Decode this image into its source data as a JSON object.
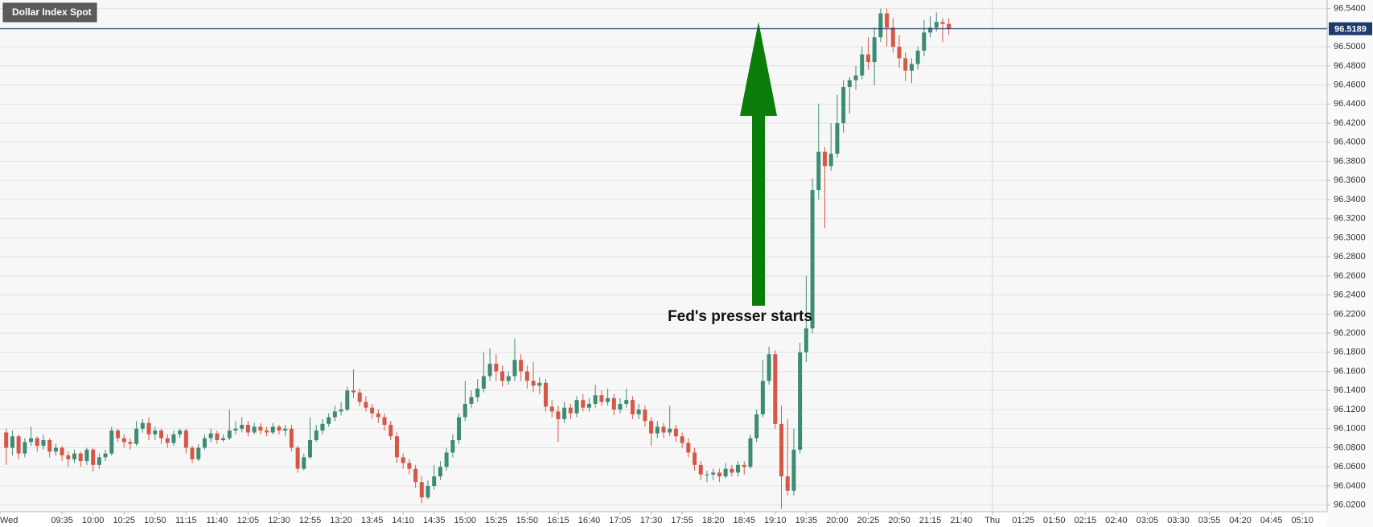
{
  "chart_data": {
    "type": "candlestick",
    "title": "Dollar Index Spot",
    "annotation": "Fed's presser starts",
    "up_color": "#3d8b74",
    "down_color": "#d65745",
    "price_line_color": "#1f3a6e",
    "grid": true,
    "x": [
      1,
      2,
      3,
      4,
      5,
      6,
      7,
      8,
      9,
      10,
      11,
      12,
      13,
      14,
      15,
      16,
      17,
      18,
      19,
      20,
      21,
      22,
      23,
      24,
      25,
      26,
      27,
      28,
      29,
      30,
      31,
      32,
      33,
      34,
      35,
      36,
      37,
      38,
      39,
      40,
      41,
      42,
      43,
      44,
      45,
      46,
      47,
      48,
      49,
      50,
      51,
      52,
      53,
      54,
      55,
      56,
      57,
      58,
      59,
      60,
      61,
      62,
      63,
      64,
      65,
      66,
      67,
      68,
      69,
      70,
      71,
      72,
      73,
      74,
      75,
      76,
      77,
      78,
      79,
      80,
      81,
      82,
      83,
      84,
      85,
      86,
      87,
      88,
      89,
      90,
      91,
      92,
      93,
      94,
      95,
      96,
      97,
      98,
      99,
      100,
      101,
      102,
      103,
      104,
      105,
      106,
      107,
      108,
      109,
      110,
      111,
      112,
      113,
      114,
      115,
      116,
      117,
      118,
      119,
      120,
      121,
      122,
      123,
      124,
      125,
      126,
      127,
      128,
      129,
      130,
      131,
      132,
      133,
      134,
      135,
      136,
      137,
      138,
      139,
      140,
      141,
      142,
      143,
      144,
      145,
      146,
      147,
      148,
      149,
      150,
      151,
      152,
      153
    ],
    "open": [
      96.096,
      96.08,
      96.092,
      96.074,
      96.086,
      96.09,
      96.082,
      96.088,
      96.076,
      96.08,
      96.072,
      96.068,
      96.074,
      96.066,
      96.078,
      96.062,
      96.07,
      96.074,
      96.098,
      96.09,
      96.086,
      96.084,
      96.1,
      96.106,
      96.094,
      96.098,
      96.09,
      96.085,
      96.094,
      96.098,
      96.08,
      96.068,
      96.08,
      96.09,
      96.095,
      96.088,
      96.09,
      96.098,
      96.1,
      96.104,
      96.096,
      96.102,
      96.098,
      96.096,
      96.102,
      96.098,
      96.1,
      96.08,
      96.058,
      96.07,
      96.088,
      96.098,
      96.105,
      96.112,
      96.118,
      96.12,
      96.14,
      96.138,
      96.128,
      96.122,
      96.116,
      96.112,
      96.104,
      96.092,
      96.07,
      96.064,
      96.058,
      96.044,
      96.028,
      96.04,
      96.05,
      96.06,
      96.075,
      96.088,
      96.112,
      96.126,
      96.133,
      96.142,
      96.155,
      96.168,
      96.16,
      96.15,
      96.155,
      96.172,
      96.16,
      96.15,
      96.145,
      96.148,
      96.123,
      96.118,
      96.11,
      96.122,
      96.116,
      96.13,
      96.122,
      96.126,
      96.135,
      96.128,
      96.132,
      96.12,
      96.126,
      96.13,
      96.115,
      96.12,
      96.108,
      96.095,
      96.102,
      96.096,
      96.1,
      96.092,
      96.085,
      96.075,
      96.062,
      96.052,
      96.052,
      96.054,
      96.05,
      96.058,
      96.054,
      96.062,
      96.06,
      96.09,
      96.115,
      96.15,
      96.178,
      96.105,
      96.05,
      96.035,
      96.078,
      96.18,
      96.205,
      96.35,
      96.39,
      96.375,
      96.388,
      96.42,
      96.458,
      96.465,
      96.47,
      96.492,
      96.484,
      96.51,
      96.535,
      96.52,
      96.5,
      96.488,
      96.475,
      96.482,
      96.496,
      96.515,
      96.52,
      96.526,
      96.524
    ],
    "high": [
      96.1,
      96.098,
      96.094,
      96.09,
      96.102,
      96.092,
      96.094,
      96.09,
      96.084,
      96.082,
      96.076,
      96.078,
      96.076,
      96.08,
      96.08,
      96.074,
      96.078,
      96.102,
      96.1,
      96.094,
      96.09,
      96.108,
      96.11,
      96.112,
      96.102,
      96.1,
      96.094,
      96.098,
      96.1,
      96.1,
      96.082,
      96.084,
      96.094,
      96.1,
      96.098,
      96.094,
      96.12,
      96.108,
      96.112,
      96.108,
      96.106,
      96.106,
      96.102,
      96.106,
      96.104,
      96.104,
      96.104,
      96.082,
      96.074,
      96.112,
      96.104,
      96.11,
      96.116,
      96.124,
      96.128,
      96.144,
      96.162,
      96.142,
      96.134,
      96.126,
      96.12,
      96.116,
      96.108,
      96.096,
      96.074,
      96.068,
      96.062,
      96.05,
      96.046,
      96.062,
      96.066,
      96.08,
      96.094,
      96.116,
      96.15,
      96.14,
      96.152,
      96.18,
      96.184,
      96.178,
      96.166,
      96.16,
      96.194,
      96.178,
      96.166,
      96.17,
      96.154,
      96.152,
      96.13,
      96.124,
      96.128,
      96.126,
      96.134,
      96.136,
      96.132,
      96.146,
      96.14,
      96.142,
      96.136,
      96.132,
      96.142,
      96.134,
      96.126,
      96.124,
      96.112,
      96.108,
      96.106,
      96.124,
      96.104,
      96.096,
      96.09,
      96.08,
      96.066,
      96.056,
      96.058,
      96.058,
      96.064,
      96.062,
      96.066,
      96.066,
      96.094,
      96.12,
      96.172,
      96.186,
      96.182,
      96.124,
      96.11,
      96.1,
      96.19,
      96.26,
      96.362,
      96.44,
      96.395,
      96.42,
      96.45,
      96.465,
      96.468,
      96.48,
      96.5,
      96.51,
      96.52,
      96.54,
      96.54,
      96.53,
      96.512,
      96.494,
      96.488,
      96.5,
      96.528,
      96.532,
      96.536,
      96.53,
      96.53
    ],
    "low": [
      96.062,
      96.072,
      96.068,
      96.07,
      96.082,
      96.076,
      96.078,
      96.07,
      96.072,
      96.066,
      96.06,
      96.064,
      96.06,
      96.062,
      96.055,
      96.058,
      96.066,
      96.072,
      96.086,
      96.08,
      96.078,
      96.082,
      96.096,
      96.088,
      96.088,
      96.084,
      96.08,
      96.082,
      96.09,
      96.074,
      96.064,
      96.066,
      96.078,
      96.086,
      96.084,
      96.086,
      96.088,
      96.094,
      96.096,
      96.092,
      96.094,
      96.094,
      96.092,
      96.094,
      96.094,
      96.092,
      96.076,
      96.054,
      96.056,
      96.068,
      96.086,
      96.094,
      96.102,
      96.108,
      96.114,
      96.118,
      96.132,
      96.124,
      96.118,
      96.11,
      96.106,
      96.098,
      96.088,
      96.064,
      96.058,
      96.052,
      96.038,
      96.022,
      96.026,
      96.036,
      96.046,
      96.056,
      96.07,
      96.084,
      96.108,
      96.122,
      96.128,
      96.138,
      96.15,
      96.15,
      96.144,
      96.146,
      96.15,
      96.15,
      96.142,
      96.138,
      96.136,
      96.118,
      96.112,
      96.086,
      96.106,
      96.11,
      96.112,
      96.118,
      96.118,
      96.122,
      96.124,
      96.124,
      96.114,
      96.116,
      96.122,
      96.11,
      96.11,
      96.102,
      96.082,
      96.09,
      96.09,
      96.092,
      96.086,
      96.08,
      96.07,
      96.056,
      96.046,
      96.044,
      96.046,
      96.044,
      96.048,
      96.05,
      96.05,
      96.052,
      96.058,
      96.086,
      96.112,
      96.146,
      96.1,
      96.016,
      96.03,
      96.03,
      96.074,
      96.17,
      96.2,
      96.34,
      96.31,
      96.37,
      96.384,
      96.41,
      96.43,
      96.455,
      96.466,
      96.476,
      96.46,
      96.505,
      96.5,
      96.494,
      96.478,
      96.464,
      96.462,
      96.476,
      96.49,
      96.51,
      96.516,
      96.505,
      96.512
    ],
    "close": [
      96.08,
      96.092,
      96.074,
      96.086,
      96.09,
      96.082,
      96.088,
      96.076,
      96.08,
      96.072,
      96.068,
      96.074,
      96.066,
      96.078,
      96.062,
      96.07,
      96.074,
      96.098,
      96.09,
      96.086,
      96.084,
      96.1,
      96.106,
      96.094,
      96.098,
      96.09,
      96.085,
      96.094,
      96.098,
      96.08,
      96.068,
      96.08,
      96.09,
      96.095,
      96.088,
      96.09,
      96.098,
      96.1,
      96.104,
      96.096,
      96.102,
      96.098,
      96.096,
      96.102,
      96.098,
      96.1,
      96.08,
      96.058,
      96.07,
      96.088,
      96.098,
      96.105,
      96.112,
      96.118,
      96.12,
      96.14,
      96.138,
      96.128,
      96.122,
      96.116,
      96.112,
      96.104,
      96.092,
      96.07,
      96.064,
      96.058,
      96.044,
      96.028,
      96.04,
      96.05,
      96.06,
      96.075,
      96.088,
      96.112,
      96.126,
      96.133,
      96.142,
      96.155,
      96.168,
      96.16,
      96.15,
      96.155,
      96.172,
      96.16,
      96.15,
      96.145,
      96.148,
      96.123,
      96.118,
      96.11,
      96.122,
      96.116,
      96.13,
      96.122,
      96.126,
      96.135,
      96.128,
      96.132,
      96.12,
      96.126,
      96.13,
      96.115,
      96.12,
      96.108,
      96.095,
      96.102,
      96.096,
      96.1,
      96.092,
      96.085,
      96.075,
      96.062,
      96.052,
      96.052,
      96.054,
      96.05,
      96.058,
      96.054,
      96.062,
      96.06,
      96.09,
      96.115,
      96.15,
      96.178,
      96.105,
      96.05,
      96.035,
      96.078,
      96.18,
      96.205,
      96.35,
      96.39,
      96.375,
      96.388,
      96.42,
      96.458,
      96.465,
      96.47,
      96.492,
      96.484,
      96.51,
      96.535,
      96.52,
      96.5,
      96.488,
      96.475,
      96.482,
      96.496,
      96.515,
      96.52,
      96.526,
      96.524,
      96.5189
    ],
    "xlim": [
      0,
      214
    ],
    "xticks": [
      {
        "value": 0,
        "label": "Wed"
      },
      {
        "value": 10,
        "label": "09:35"
      },
      {
        "value": 15,
        "label": "10:00"
      },
      {
        "value": 20,
        "label": "10:25"
      },
      {
        "value": 25,
        "label": "10:50"
      },
      {
        "value": 30,
        "label": "11:15"
      },
      {
        "value": 35,
        "label": "11:40"
      },
      {
        "value": 40,
        "label": "12:05"
      },
      {
        "value": 45,
        "label": "12:30"
      },
      {
        "value": 50,
        "label": "12:55"
      },
      {
        "value": 55,
        "label": "13:20"
      },
      {
        "value": 60,
        "label": "13:45"
      },
      {
        "value": 65,
        "label": "14:10"
      },
      {
        "value": 70,
        "label": "14:35"
      },
      {
        "value": 75,
        "label": "15:00"
      },
      {
        "value": 80,
        "label": "15:25"
      },
      {
        "value": 85,
        "label": "15:50"
      },
      {
        "value": 90,
        "label": "16:15"
      },
      {
        "value": 95,
        "label": "16:40"
      },
      {
        "value": 100,
        "label": "17:05"
      },
      {
        "value": 105,
        "label": "17:30"
      },
      {
        "value": 110,
        "label": "17:55"
      },
      {
        "value": 115,
        "label": "18:20"
      },
      {
        "value": 120,
        "label": "18:45"
      },
      {
        "value": 125,
        "label": "19:10"
      },
      {
        "value": 130,
        "label": "19:35"
      },
      {
        "value": 135,
        "label": "20:00"
      },
      {
        "value": 140,
        "label": "20:25"
      },
      {
        "value": 145,
        "label": "20:50"
      },
      {
        "value": 150,
        "label": "21:15"
      },
      {
        "value": 155,
        "label": "21:40"
      },
      {
        "value": 160,
        "label": "Thu"
      },
      {
        "value": 165,
        "label": "01:25"
      },
      {
        "value": 170,
        "label": "01:50"
      },
      {
        "value": 175,
        "label": "02:15"
      },
      {
        "value": 180,
        "label": "02:40"
      },
      {
        "value": 185,
        "label": "03:05"
      },
      {
        "value": 190,
        "label": "03:30"
      },
      {
        "value": 195,
        "label": "03:55"
      },
      {
        "value": 200,
        "label": "04:20"
      },
      {
        "value": 205,
        "label": "04:45"
      },
      {
        "value": 210,
        "label": "05:10"
      }
    ],
    "ylim": [
      96.013,
      96.549
    ],
    "yticks": [
      {
        "value": 96.02,
        "label": "96.0200"
      },
      {
        "value": 96.04,
        "label": "96.0400"
      },
      {
        "value": 96.06,
        "label": "96.0600"
      },
      {
        "value": 96.08,
        "label": "96.0800"
      },
      {
        "value": 96.1,
        "label": "96.1000"
      },
      {
        "value": 96.12,
        "label": "96.1200"
      },
      {
        "value": 96.14,
        "label": "96.1400"
      },
      {
        "value": 96.16,
        "label": "96.1600"
      },
      {
        "value": 96.18,
        "label": "96.1800"
      },
      {
        "value": 96.2,
        "label": "96.2000"
      },
      {
        "value": 96.22,
        "label": "96.2200"
      },
      {
        "value": 96.24,
        "label": "96.2400"
      },
      {
        "value": 96.26,
        "label": "96.2600"
      },
      {
        "value": 96.28,
        "label": "96.2800"
      },
      {
        "value": 96.3,
        "label": "96.3000"
      },
      {
        "value": 96.32,
        "label": "96.3200"
      },
      {
        "value": 96.34,
        "label": "96.3400"
      },
      {
        "value": 96.36,
        "label": "96.3600"
      },
      {
        "value": 96.38,
        "label": "96.3800"
      },
      {
        "value": 96.4,
        "label": "96.4000"
      },
      {
        "value": 96.42,
        "label": "96.4200"
      },
      {
        "value": 96.44,
        "label": "96.4400"
      },
      {
        "value": 96.46,
        "label": "96.4600"
      },
      {
        "value": 96.48,
        "label": "96.4800"
      },
      {
        "value": 96.5,
        "label": "96.5000"
      },
      {
        "value": 96.52,
        "label": "96.5200"
      },
      {
        "value": 96.54,
        "label": "96.5400"
      }
    ]
  }
}
